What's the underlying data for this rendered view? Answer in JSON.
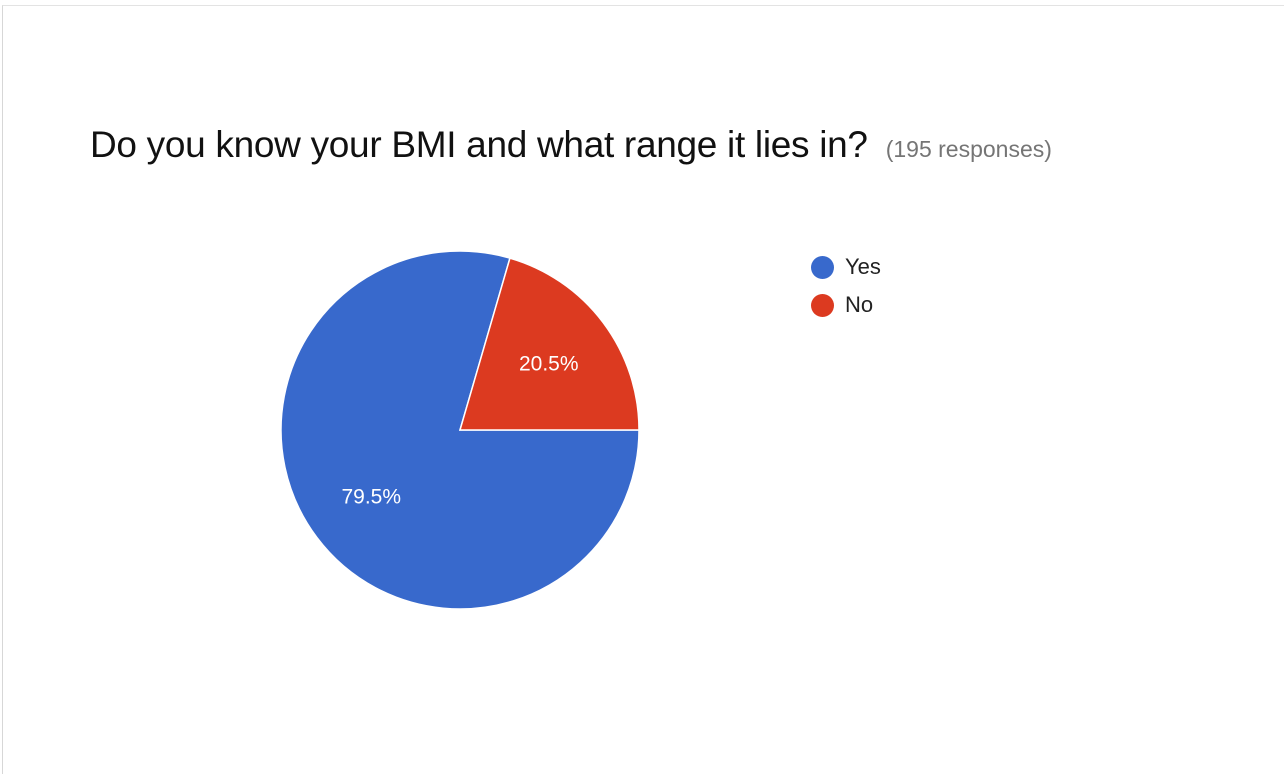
{
  "header": {
    "title": "Do you know your BMI and what range it lies in?",
    "responses": "(195 responses)"
  },
  "chart_data": {
    "type": "pie",
    "title": "Do you know your BMI and what range it lies in?",
    "categories": [
      "Yes",
      "No"
    ],
    "values": [
      79.5,
      20.5
    ],
    "labels": [
      "79.5%",
      "20.5%"
    ],
    "colors": [
      "#3869cc",
      "#dc3a20"
    ],
    "legend_position": "right"
  },
  "legend": {
    "items": [
      {
        "label": "Yes",
        "color": "#3869cc"
      },
      {
        "label": "No",
        "color": "#dc3a20"
      }
    ]
  }
}
